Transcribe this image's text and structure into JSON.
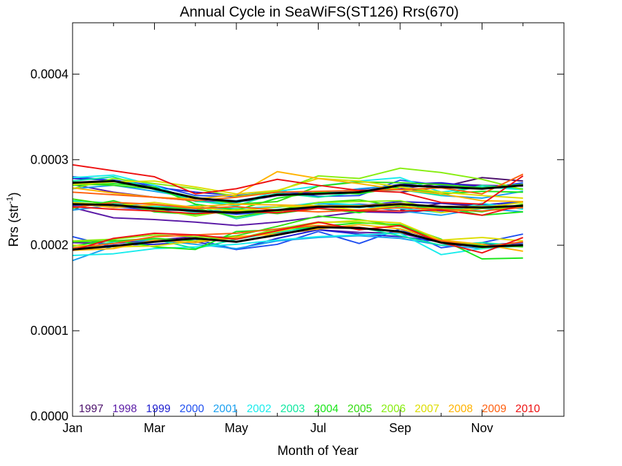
{
  "chart_data": {
    "type": "line",
    "title": "Annual Cycle in SeaWiFS(ST126) Rrs(670)",
    "xlabel": "Month of Year",
    "ylabel_main": "Rrs (str",
    "ylabel_sup": "-1",
    "ylabel_close": ")",
    "xlim": [
      1,
      13
    ],
    "ylim": [
      0,
      0.00046
    ],
    "x_ticks": [
      {
        "label": "Jan",
        "x": 1
      },
      {
        "label": "Mar",
        "x": 3
      },
      {
        "label": "May",
        "x": 5
      },
      {
        "label": "Jul",
        "x": 7
      },
      {
        "label": "Sep",
        "x": 9
      },
      {
        "label": "Nov",
        "x": 11
      }
    ],
    "y_ticks": [
      {
        "label": "0.0000",
        "y": 0
      },
      {
        "label": "0.0001",
        "y": 0.0001
      },
      {
        "label": "0.0002",
        "y": 0.0002
      },
      {
        "label": "0.0003",
        "y": 0.0003
      },
      {
        "label": "0.0004",
        "y": 0.0004
      }
    ],
    "x": [
      1,
      2,
      3,
      4,
      5,
      6,
      7,
      8,
      9,
      10,
      11,
      12
    ],
    "series": [
      {
        "name": "1997",
        "color": "#4b0f6b",
        "mean": [
          null,
          null,
          null,
          null,
          null,
          null,
          null,
          null,
          0.000241,
          0.000249,
          0.000245,
          0.000243
        ],
        "upper": [
          null,
          null,
          null,
          null,
          null,
          null,
          null,
          null,
          0.000262,
          0.000268,
          0.000279,
          0.000275
        ],
        "lower": [
          null,
          null,
          null,
          null,
          null,
          null,
          null,
          null,
          0.000219,
          0.000205,
          0.000201,
          0.000199
        ]
      },
      {
        "name": "1998",
        "color": "#5a1aa6",
        "mean": [
          0.000244,
          0.000232,
          0.00023,
          0.000227,
          0.000223,
          0.000227,
          0.000233,
          0.000239,
          0.000238,
          0.000242,
          0.000247,
          0.000245
        ],
        "upper": [
          0.000271,
          0.000262,
          0.000256,
          0.000252,
          0.00025,
          0.000258,
          0.00026,
          0.000262,
          0.000266,
          0.000272,
          0.00027,
          0.000269
        ],
        "lower": [
          0.000203,
          0.000202,
          0.000206,
          0.00021,
          0.000209,
          0.000214,
          0.000218,
          0.000215,
          0.000214,
          0.000203,
          0.000199,
          0.000201
        ]
      },
      {
        "name": "1999",
        "color": "#2020d0",
        "mean": [
          0.000248,
          0.000245,
          0.000241,
          0.000241,
          0.000237,
          0.00024,
          0.000244,
          0.000246,
          0.000251,
          0.000249,
          0.000247,
          0.000251
        ],
        "upper": [
          0.000278,
          0.000276,
          0.000268,
          0.000262,
          0.000258,
          0.000262,
          0.000261,
          0.000265,
          0.000271,
          0.000273,
          0.000268,
          0.000271
        ],
        "lower": [
          0.000195,
          0.0002,
          0.000201,
          0.000204,
          0.000195,
          0.000208,
          0.000218,
          0.000213,
          0.00021,
          0.000204,
          0.0002,
          0.000203
        ]
      },
      {
        "name": "2000",
        "color": "#1f4ff0",
        "mean": [
          0.000246,
          0.00025,
          0.000244,
          0.000241,
          0.000236,
          0.00024,
          0.000246,
          0.000248,
          0.000245,
          0.00024,
          0.000244,
          0.000251
        ],
        "upper": [
          0.00028,
          0.000276,
          0.00027,
          0.000258,
          0.000257,
          0.000264,
          0.000257,
          0.000258,
          0.000276,
          0.00027,
          0.000266,
          0.000273
        ],
        "lower": [
          0.00021,
          0.000198,
          0.000204,
          0.000207,
          0.000195,
          0.000201,
          0.000216,
          0.000202,
          0.000219,
          0.000197,
          0.000203,
          0.000213
        ]
      },
      {
        "name": "2001",
        "color": "#1aa0f0",
        "mean": [
          0.000241,
          0.000247,
          0.000246,
          0.000243,
          0.000243,
          0.000245,
          0.000249,
          0.000246,
          0.00024,
          0.000235,
          0.000243,
          0.000239
        ],
        "upper": [
          0.000266,
          0.00027,
          0.000263,
          0.000255,
          0.000252,
          0.000259,
          0.00026,
          0.000266,
          0.00027,
          0.000258,
          0.000255,
          0.000263
        ],
        "lower": [
          0.000182,
          0.000199,
          0.000206,
          0.000201,
          0.000196,
          0.000205,
          0.000209,
          0.000211,
          0.000208,
          0.0002,
          0.000196,
          0.000201
        ]
      },
      {
        "name": "2002",
        "color": "#18ecec",
        "mean": [
          0.000251,
          0.000244,
          0.000246,
          0.000238,
          0.000243,
          0.000244,
          0.00025,
          0.000247,
          0.000243,
          0.000238,
          0.000249,
          0.000242
        ],
        "upper": [
          0.000279,
          0.000282,
          0.00027,
          0.000251,
          0.000249,
          0.000263,
          0.000269,
          0.000275,
          0.000279,
          0.000262,
          0.000268,
          0.000265
        ],
        "lower": [
          0.000188,
          0.00019,
          0.000196,
          0.000198,
          0.000201,
          0.000206,
          0.00021,
          0.000212,
          0.000214,
          0.000189,
          0.000196,
          0.000199
        ]
      },
      {
        "name": "2003",
        "color": "#10e8a0",
        "mean": [
          0.000252,
          0.000249,
          0.00024,
          0.000247,
          0.000231,
          0.00024,
          0.000247,
          0.000244,
          0.000249,
          0.000242,
          0.000246,
          0.000245
        ],
        "upper": [
          0.000275,
          0.00028,
          0.000265,
          0.000252,
          0.000246,
          0.000261,
          0.000256,
          0.000262,
          0.000265,
          0.000258,
          0.00027,
          0.000266
        ],
        "lower": [
          0.000194,
          0.000204,
          0.000207,
          0.000196,
          0.000207,
          0.000215,
          0.000222,
          0.000221,
          0.000211,
          0.0002,
          0.000203,
          0.000199
        ]
      },
      {
        "name": "2004",
        "color": "#19e619",
        "mean": [
          0.000243,
          0.000252,
          0.000239,
          0.000236,
          0.000241,
          0.000237,
          0.000243,
          0.000238,
          0.000247,
          0.000245,
          0.000235,
          0.000239
        ],
        "upper": [
          0.00027,
          0.000272,
          0.000268,
          0.000248,
          0.000241,
          0.000255,
          0.000262,
          0.00026,
          0.000268,
          0.00026,
          0.000263,
          0.000262
        ],
        "lower": [
          0.000199,
          0.000206,
          0.000198,
          0.000195,
          0.000216,
          0.000218,
          0.000222,
          0.000226,
          0.000224,
          0.000207,
          0.000184,
          0.000185
        ]
      },
      {
        "name": "2005",
        "color": "#33dd11",
        "mean": [
          0.000254,
          0.000247,
          0.000244,
          0.000243,
          0.000233,
          0.000241,
          0.00025,
          0.000253,
          0.000245,
          0.000243,
          0.000239,
          0.000248
        ],
        "upper": [
          0.000272,
          0.00027,
          0.000266,
          0.000256,
          0.000248,
          0.000251,
          0.000269,
          0.000274,
          0.000273,
          0.000271,
          0.000267,
          0.000271
        ],
        "lower": [
          0.000204,
          0.000205,
          0.000208,
          0.000205,
          0.000211,
          0.000222,
          0.000234,
          0.00023,
          0.000222,
          0.000206,
          0.0002,
          0.000198
        ]
      },
      {
        "name": "2006",
        "color": "#88ee11",
        "mean": [
          0.00025,
          0.000247,
          0.000242,
          0.000234,
          0.000242,
          0.000239,
          0.00025,
          0.000251,
          0.000252,
          0.000241,
          0.000243,
          0.000245
        ],
        "upper": [
          0.000266,
          0.000278,
          0.000272,
          0.000266,
          0.000257,
          0.000263,
          0.000281,
          0.000278,
          0.00029,
          0.000285,
          0.000277,
          0.000265
        ],
        "lower": [
          0.000205,
          0.000207,
          0.000212,
          0.00021,
          0.000207,
          0.000219,
          0.000227,
          0.000227,
          0.000222,
          0.000204,
          0.000197,
          0.0002
        ]
      },
      {
        "name": "2007",
        "color": "#dddd00",
        "mean": [
          0.00025,
          0.000246,
          0.00025,
          0.000244,
          0.00024,
          0.000245,
          0.000246,
          0.000241,
          0.000247,
          0.000238,
          0.000244,
          0.00025
        ],
        "upper": [
          0.000271,
          0.000274,
          0.000275,
          0.000268,
          0.00026,
          0.000264,
          0.000278,
          0.000275,
          0.000268,
          0.000262,
          0.000258,
          0.000255
        ],
        "lower": [
          0.0002,
          0.000198,
          0.000199,
          0.000205,
          0.000208,
          0.000216,
          0.000226,
          0.000229,
          0.000226,
          0.000206,
          0.000209,
          0.000205
        ]
      },
      {
        "name": "2008",
        "color": "#ffb300",
        "mean": [
          0.000249,
          0.000244,
          0.000247,
          0.000245,
          0.000248,
          0.000247,
          0.000246,
          0.000246,
          0.000249,
          0.000245,
          0.000245,
          0.000246
        ],
        "upper": [
          0.000267,
          0.000261,
          0.000256,
          0.000254,
          0.000259,
          0.000286,
          0.000278,
          0.000272,
          0.000265,
          0.00026,
          0.000252,
          0.000251
        ],
        "lower": [
          0.000194,
          0.000196,
          0.000206,
          0.000203,
          0.00021,
          0.000213,
          0.000219,
          0.000224,
          0.000219,
          0.000206,
          0.000201,
          0.000193
        ]
      },
      {
        "name": "2009",
        "color": "#ff6010",
        "mean": [
          0.000244,
          0.00025,
          0.000248,
          0.000243,
          0.000245,
          0.000241,
          0.000239,
          0.000241,
          0.000244,
          0.000242,
          0.00024,
          0.000244
        ],
        "upper": [
          0.000262,
          0.000259,
          0.000256,
          0.000252,
          0.000256,
          0.000262,
          0.000263,
          0.000264,
          0.000265,
          0.000267,
          0.00026,
          0.000283
        ],
        "lower": [
          0.000197,
          0.000202,
          0.00021,
          0.000212,
          0.000214,
          0.000219,
          0.000223,
          0.000221,
          0.000215,
          0.000205,
          0.000198,
          0.000204
        ]
      },
      {
        "name": "2010",
        "color": "#ee1111",
        "mean": [
          0.000245,
          0.000242,
          0.00024,
          0.000237,
          0.000239,
          0.000238,
          0.000243,
          0.00024,
          0.00024,
          0.000241,
          0.000235,
          0.000247
        ],
        "upper": [
          0.000294,
          0.000287,
          0.00028,
          0.00026,
          0.000266,
          0.000277,
          0.00027,
          0.000264,
          0.000262,
          0.00025,
          0.000248,
          0.000281
        ],
        "lower": [
          0.000194,
          0.000208,
          0.000214,
          0.000212,
          0.000207,
          0.000217,
          0.000227,
          0.000218,
          0.000223,
          0.000203,
          0.000191,
          0.000209
        ]
      }
    ],
    "climatology": {
      "color": "#000000",
      "mean": [
        0.000248,
        0.000247,
        0.000243,
        0.00024,
        0.000238,
        0.000241,
        0.000245,
        0.000245,
        0.000248,
        0.000245,
        0.000244,
        0.000246
      ],
      "upper": [
        0.000273,
        0.000275,
        0.000266,
        0.000255,
        0.000251,
        0.000259,
        0.00026,
        0.000262,
        0.00027,
        0.000268,
        0.000266,
        0.00027
      ],
      "lower": [
        0.000195,
        0.000199,
        0.000204,
        0.000208,
        0.000204,
        0.000212,
        0.000221,
        0.00022,
        0.000216,
        0.000203,
        0.000198,
        0.0002
      ]
    }
  }
}
